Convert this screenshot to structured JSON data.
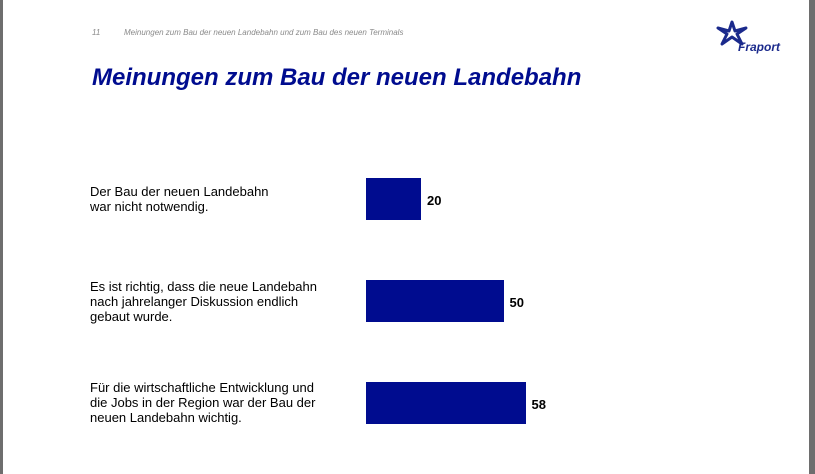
{
  "header": {
    "page_number": "11",
    "running_title": "Meinungen zum Bau der neuen Landebahn und zum Bau des neuen Terminals",
    "logo_text": "Fraport"
  },
  "title": "Meinungen zum Bau der neuen Landebahn",
  "colors": {
    "bar": "#000c8f",
    "title": "#000c8f",
    "logo": "#1b2a8c"
  },
  "chart_data": {
    "type": "bar",
    "orientation": "horizontal",
    "categories": [
      "Der Bau der neuen Landebahn\nwar nicht notwendig.",
      "Es ist richtig, dass die neue Landebahn\nnach jahrelanger Diskussion endlich\ngebaut wurde.",
      "Für die wirtschaftliche Entwicklung und\ndie Jobs in der Region war der Bau der\nneuen Landebahn wichtig."
    ],
    "values": [
      20,
      50,
      58
    ],
    "value_labels": [
      "20",
      "50",
      "58"
    ],
    "xlim": [
      0,
      100
    ],
    "grid": false,
    "legend": "none"
  }
}
